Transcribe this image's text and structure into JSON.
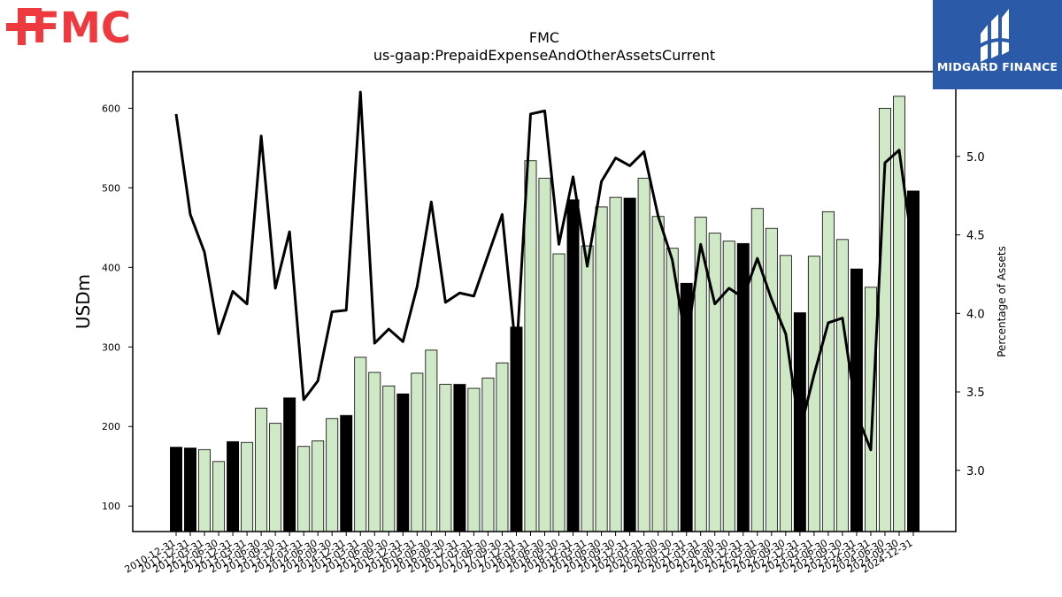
{
  "logos": {
    "left_text": "FMC",
    "right_text": "MIDGARD FINANCE"
  },
  "colors": {
    "annual_bar": "#000000",
    "quarter_bar": "#cfe8c6",
    "line": "#000000",
    "logo_red": "#ee3a3f",
    "logo_blue": "#2b5aa8"
  },
  "chart_data": {
    "type": "bar",
    "title": "FMC",
    "subtitle": "us-gaap:PrepaidExpenseAndOtherAssetsCurrent",
    "ylabel": "USDm",
    "y2label": "Percentage of Assets",
    "ylim": [
      68,
      646
    ],
    "y2lim": [
      2.61,
      5.54
    ],
    "yticks": [
      100,
      200,
      300,
      400,
      500,
      600
    ],
    "y2ticks": [
      3.0,
      3.5,
      4.0,
      4.5,
      5.0
    ],
    "grid": false,
    "categories": [
      "2010-12-31",
      "2011-12-31",
      "2012-03-31",
      "2012-06-30",
      "2012-12-31",
      "2013-03-31",
      "2013-06-30",
      "2013-09-30",
      "2013-12-31",
      "2014-03-31",
      "2014-06-30",
      "2014-09-30",
      "2014-12-31",
      "2015-03-31",
      "2015-06-30",
      "2015-09-30",
      "2015-12-31",
      "2016-03-31",
      "2016-06-30",
      "2016-09-30",
      "2016-12-31",
      "2017-03-31",
      "2017-06-30",
      "2017-09-30",
      "2017-12-31",
      "2018-03-31",
      "2018-06-30",
      "2018-09-30",
      "2018-12-31",
      "2019-03-31",
      "2019-06-30",
      "2019-09-30",
      "2019-12-31",
      "2020-03-31",
      "2020-06-30",
      "2020-09-30",
      "2020-12-31",
      "2021-03-31",
      "2021-06-30",
      "2021-09-30",
      "2021-12-31",
      "2022-03-31",
      "2022-06-30",
      "2022-09-30",
      "2022-12-31",
      "2023-03-31",
      "2023-06-30",
      "2023-09-30",
      "2023-12-31",
      "2024-03-31",
      "2024-06-30",
      "2024-09-30",
      "2024-12-31"
    ],
    "annual": [
      true,
      true,
      false,
      false,
      true,
      false,
      false,
      false,
      true,
      false,
      false,
      false,
      true,
      false,
      false,
      false,
      true,
      false,
      false,
      false,
      true,
      false,
      false,
      false,
      true,
      false,
      false,
      false,
      true,
      false,
      false,
      false,
      true,
      false,
      false,
      false,
      true,
      false,
      false,
      false,
      true,
      false,
      false,
      false,
      true,
      false,
      false,
      false,
      true,
      false,
      false,
      false,
      true
    ],
    "series": [
      {
        "name": "USDm",
        "values": [
          174,
          173,
          171,
          156,
          181,
          180,
          223,
          204,
          236,
          175,
          182,
          210,
          214,
          287,
          268,
          251,
          241,
          267,
          296,
          253,
          253,
          248,
          261,
          280,
          325,
          534,
          512,
          417,
          485,
          427,
          476,
          488,
          487,
          512,
          464,
          424,
          380,
          463,
          443,
          433,
          430,
          474,
          449,
          415,
          343,
          414,
          470,
          435,
          398,
          375,
          600,
          615,
          496
        ]
      },
      {
        "name": "Percentage of Assets",
        "values": [
          5.27,
          4.63,
          4.39,
          3.87,
          4.14,
          4.06,
          5.13,
          4.16,
          4.52,
          3.45,
          3.57,
          4.01,
          4.02,
          5.41,
          3.81,
          3.9,
          3.82,
          4.17,
          4.71,
          4.07,
          4.13,
          4.11,
          4.37,
          4.63,
          3.73,
          5.27,
          5.29,
          4.44,
          4.87,
          4.3,
          4.84,
          4.99,
          4.94,
          5.03,
          4.62,
          4.34,
          3.8,
          4.44,
          4.06,
          4.16,
          4.1,
          4.35,
          4.09,
          3.87,
          3.25,
          3.61,
          3.94,
          3.97,
          3.36,
          3.13,
          4.96,
          5.04,
          4.38
        ]
      }
    ]
  }
}
